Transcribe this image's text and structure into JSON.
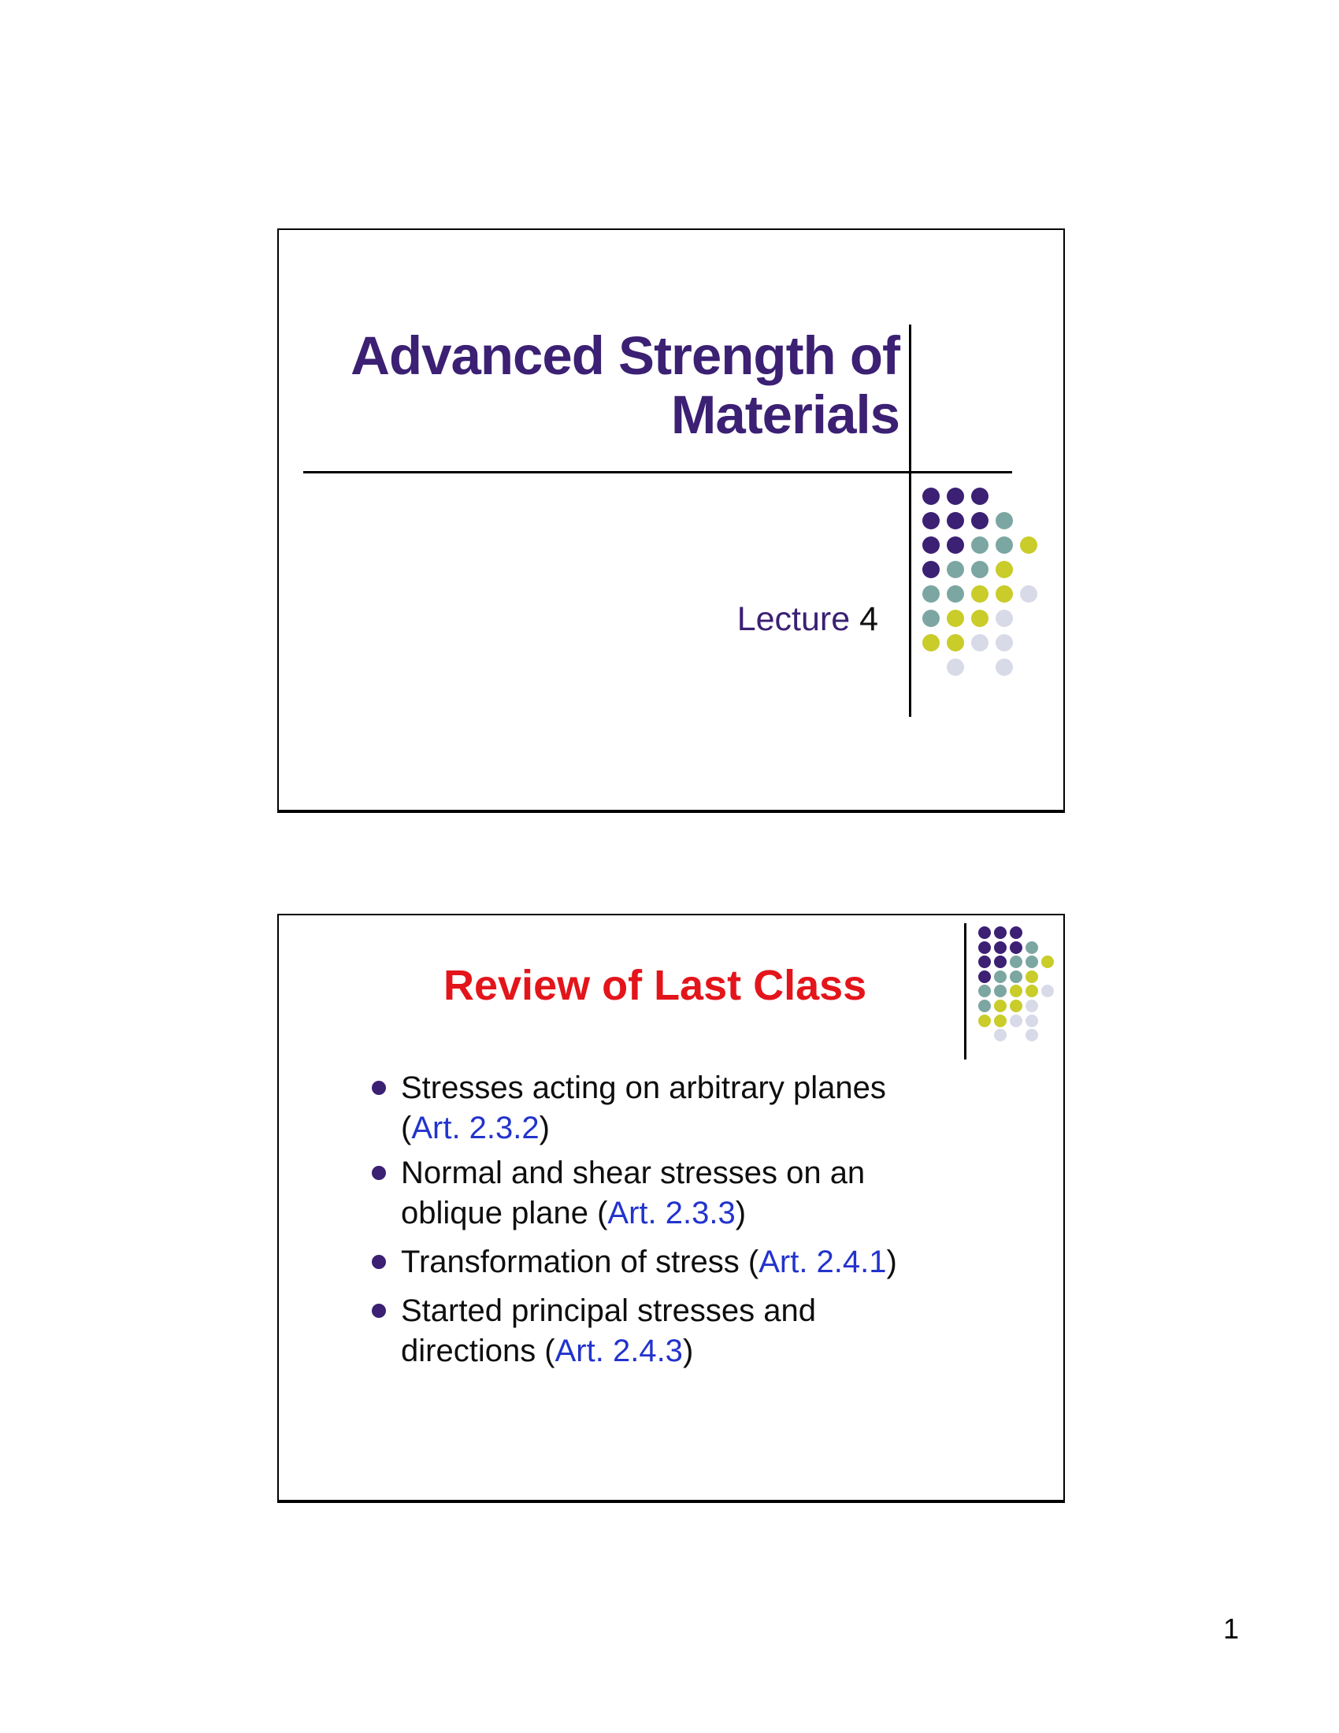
{
  "page": {
    "page_number": "1"
  },
  "slide1": {
    "title_line1": "Advanced Strength of",
    "title_line2": "Materials",
    "lecture_label": "Lecture ",
    "lecture_number": "4"
  },
  "slide2": {
    "title": "Review of Last Class",
    "bullets": [
      {
        "lines": [
          [
            {
              "t": "Stresses acting on arbitrary planes",
              "c": "body"
            }
          ],
          [
            {
              "t": "(",
              "c": "body"
            },
            {
              "t": "Art. 2.3.2",
              "c": "ref"
            },
            {
              "t": ")",
              "c": "body"
            }
          ]
        ]
      },
      {
        "lines": [
          [
            {
              "t": "Normal and shear stresses on an",
              "c": "body"
            }
          ],
          [
            {
              "t": "oblique plane (",
              "c": "body"
            },
            {
              "t": "Art. 2.3.3",
              "c": "ref"
            },
            {
              "t": ")",
              "c": "body"
            }
          ]
        ]
      },
      {
        "lines": [
          [
            {
              "t": "Transformation of stress (",
              "c": "body"
            },
            {
              "t": "Art. 2.4.1",
              "c": "ref"
            },
            {
              "t": ")",
              "c": "body"
            }
          ]
        ]
      },
      {
        "lines": [
          [
            {
              "t": "Started principal stresses and",
              "c": "body"
            }
          ],
          [
            {
              "t": "directions (",
              "c": "body"
            },
            {
              "t": "Art. 2.4.3",
              "c": "ref"
            },
            {
              "t": ")",
              "c": "body"
            }
          ]
        ]
      }
    ]
  },
  "dot_pattern": {
    "rows": [
      [
        "P",
        "P",
        "P",
        "",
        ""
      ],
      [
        "P",
        "P",
        "P",
        "T",
        ""
      ],
      [
        "P",
        "P",
        "T",
        "T",
        "Y"
      ],
      [
        "P",
        "T",
        "T",
        "Y",
        ""
      ],
      [
        "T",
        "T",
        "Y",
        "Y",
        "G"
      ],
      [
        "T",
        "Y",
        "Y",
        "G",
        ""
      ],
      [
        "Y",
        "Y",
        "G",
        "G",
        ""
      ],
      [
        "",
        "G",
        "",
        "G",
        ""
      ]
    ],
    "colors": {
      "P": "#3b2074",
      "T": "#7ca6a2",
      "Y": "#c9cc29",
      "G": "#d8dae8"
    }
  },
  "colors": {
    "title_purple": "#3b2073",
    "review_red": "#e3151b",
    "reference_blue": "#2233cc",
    "body_text": "#0e0e0e",
    "slide_border": "#000000"
  }
}
